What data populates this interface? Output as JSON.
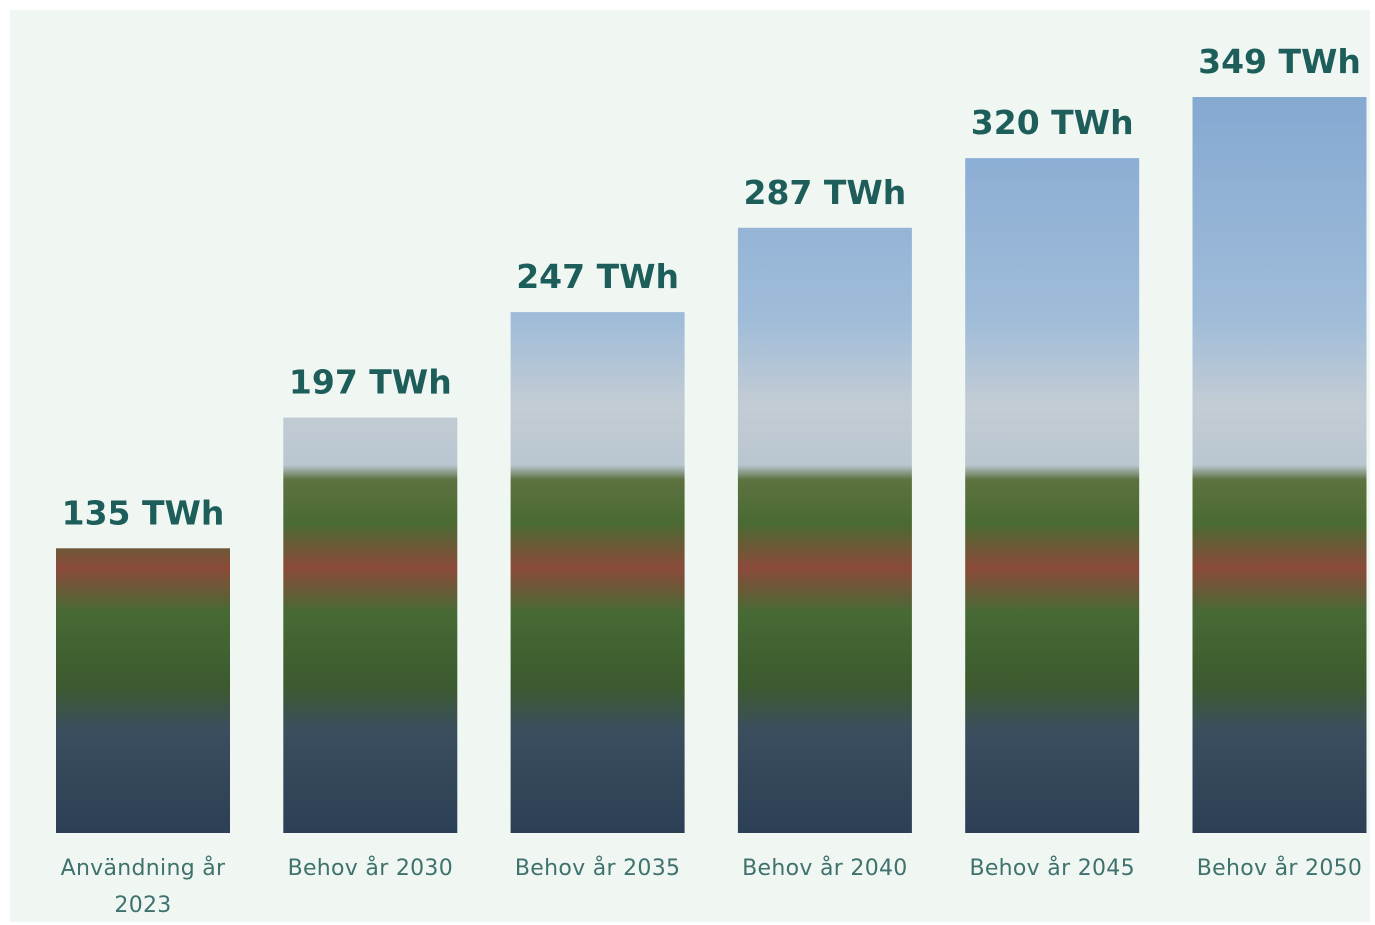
{
  "chart_data": {
    "type": "bar",
    "categories": [
      "Användning år 2023",
      "Behov år 2030",
      "Behov år 2035",
      "Behov år 2040",
      "Behov år 2045",
      "Behov år 2050"
    ],
    "values": [
      135,
      197,
      247,
      287,
      320,
      349
    ],
    "value_labels": [
      "135 TWh",
      "197 TWh",
      "247 TWh",
      "287 TWh",
      "320 TWh",
      "349 TWh"
    ]
  }
}
